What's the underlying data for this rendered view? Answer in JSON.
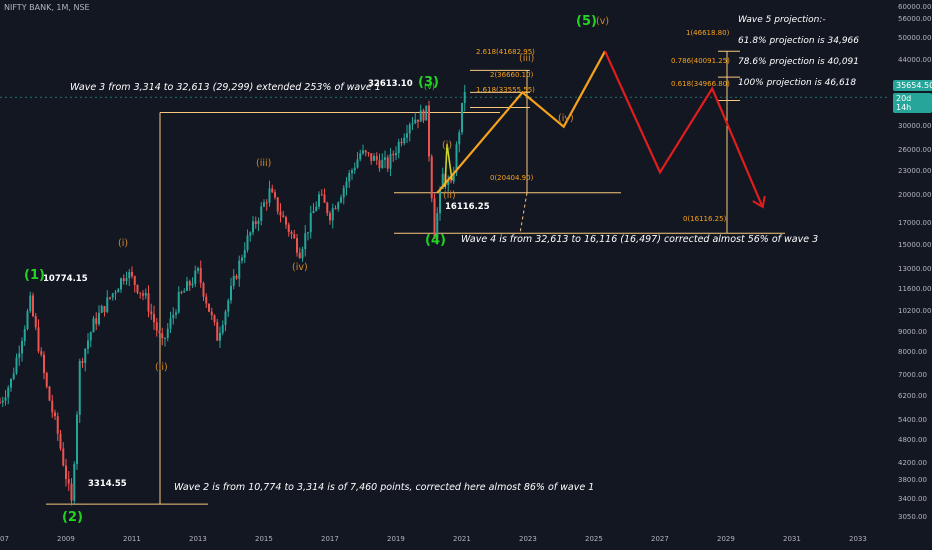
{
  "symbol": "NIFTY BANK, 1M, NSE",
  "colors": {
    "background": "#131722",
    "up_candle": "#26a69a",
    "down_candle": "#ef5350",
    "fib_line": "#f7c77e",
    "projection_orange": "#f7a21b",
    "projection_red": "#e11d1d",
    "wave_green": "#22d422",
    "wave_orange": "#d08a2e"
  },
  "chart_data": {
    "type": "candlestick",
    "title": "",
    "xlabel": "",
    "ylabel": "",
    "y_scale": "log",
    "ylim": [
      2850,
      60000
    ],
    "x_tick_labels": [
      "07",
      "2009",
      "2011",
      "2013",
      "2015",
      "2017",
      "2019",
      "2021",
      "2023",
      "2025",
      "2027",
      "2029",
      "2031",
      "2033"
    ],
    "y_tick_labels": [
      "60000.00",
      "56000.00",
      "50000.00",
      "44000.00",
      "38000.00",
      "34000.00",
      "30000.00",
      "26000.00",
      "23000.00",
      "20000.00",
      "17000.00",
      "15000.00",
      "13000.00",
      "11600.00",
      "10200.00",
      "9000.00",
      "8000.00",
      "7000.00",
      "6200.00",
      "5400.00",
      "4800.00",
      "4200.00",
      "3800.00",
      "3400.00",
      "3050.00"
    ],
    "grid": false,
    "price_path": [
      {
        "date": "2007-01",
        "value": 6000
      },
      {
        "date": "2007-05",
        "value": 6800
      },
      {
        "date": "2007-12",
        "value": 10774.15
      },
      {
        "date": "2008-06",
        "value": 6500
      },
      {
        "date": "2008-10",
        "value": 5000
      },
      {
        "date": "2009-03",
        "value": 3314.55
      },
      {
        "date": "2009-06",
        "value": 7500
      },
      {
        "date": "2009-11",
        "value": 9500
      },
      {
        "date": "2010-11",
        "value": 12900
      },
      {
        "date": "2011-06",
        "value": 11000
      },
      {
        "date": "2011-12",
        "value": 8400
      },
      {
        "date": "2012-06",
        "value": 11000
      },
      {
        "date": "2013-01",
        "value": 12800
      },
      {
        "date": "2013-08",
        "value": 8800
      },
      {
        "date": "2014-06",
        "value": 15000
      },
      {
        "date": "2015-03",
        "value": 20500
      },
      {
        "date": "2015-09",
        "value": 17000
      },
      {
        "date": "2016-02",
        "value": 14500
      },
      {
        "date": "2016-09",
        "value": 20000
      },
      {
        "date": "2017-01",
        "value": 18000
      },
      {
        "date": "2017-12",
        "value": 25700
      },
      {
        "date": "2018-10",
        "value": 24000
      },
      {
        "date": "2019-06",
        "value": 31000
      },
      {
        "date": "2019-12",
        "value": 32613.1
      },
      {
        "date": "2020-03",
        "value": 16116.25
      },
      {
        "date": "2020-06",
        "value": 22500
      },
      {
        "date": "2020-09",
        "value": 21000
      },
      {
        "date": "2021-02",
        "value": 37300
      }
    ],
    "projection_orange": [
      {
        "date": "2020-04",
        "value": 20404.9
      },
      {
        "date": "2022-11",
        "value": 36660.1
      },
      {
        "date": "2024-02",
        "value": 30000
      },
      {
        "date": "2025-05",
        "value": 46618.8
      }
    ],
    "projection_red": [
      {
        "date": "2025-05",
        "value": 46618.8
      },
      {
        "date": "2027-01",
        "value": 23000
      },
      {
        "date": "2028-08",
        "value": 37500
      },
      {
        "date": "2030-02",
        "value": 19000
      }
    ],
    "fib_levels_upper": [
      {
        "label": "2.618(41682.95)",
        "value": 41682.95
      },
      {
        "label": "2(36660.10)",
        "value": 36660.1
      },
      {
        "label": "1.618(33555.55)",
        "value": 33555.55
      },
      {
        "label": "0(20404.90)",
        "value": 20404.9
      }
    ],
    "fib_levels_right": [
      {
        "label": "1(46618.80)",
        "value": 46618.8
      },
      {
        "label": "0.786(40091.25)",
        "value": 40091.25
      },
      {
        "label": "0.618(34966.80)",
        "value": 34966.8
      },
      {
        "label": "0(16116.25)",
        "value": 16116.25
      }
    ],
    "current_price": "35654.50",
    "countdown": "20d 14h"
  },
  "annotations": {
    "wave3_text": "Wave 3 from 3,314 to 32,613 (29,299) extended 253% of wave 1",
    "wave4_text": "Wave 4 is from 32,613 to 16,116 (16,497) corrected almost 56% of wave 3",
    "wave2_text": "Wave 2 is from 10,774 to 3,314 is of 7,460 points, corrected here almost 86% of wave 1",
    "projection_title": "Wave 5 projection:-",
    "projection_1": "61.8% projection is 34,966",
    "projection_2": "78.6% projection is 40,091",
    "projection_3": "100% projection is 46,618"
  },
  "wave_labels": {
    "w1": "(1)",
    "w2": "(2)",
    "w3": "(3)",
    "w4": "(4)",
    "w5": "(5)",
    "i": "(i)",
    "ii": "(ii)",
    "iii": "(iii)",
    "iv": "(iv)",
    "i_b": "(i)",
    "ii_b": "(ii)",
    "iii_b": "(iii)",
    "iv_b": "(iv)",
    "v_b": "(v)",
    "v_small": "(v)"
  },
  "price_labels": {
    "p1": "10774.15",
    "p2": "3314.55",
    "p3": "32613.10",
    "p4": "16116.25"
  }
}
